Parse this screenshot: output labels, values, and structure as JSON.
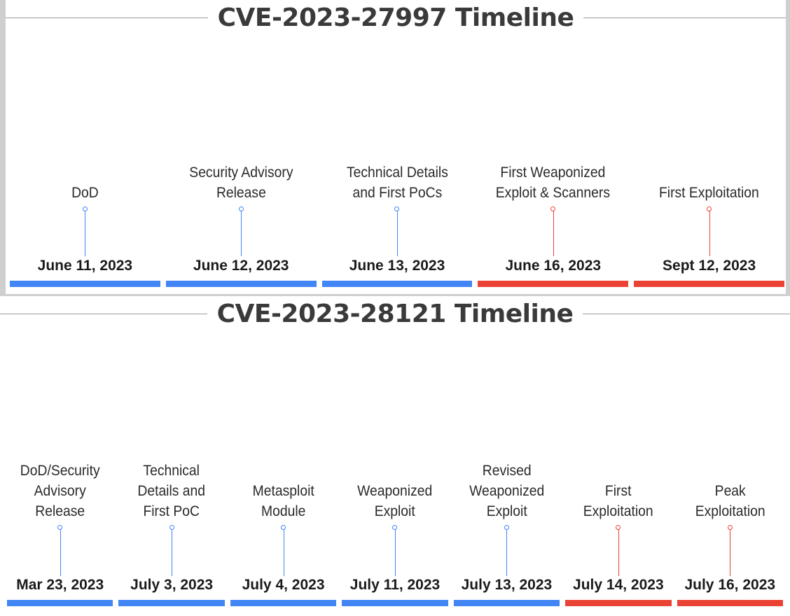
{
  "colors": {
    "blue": "#4285f4",
    "red": "#ea4335"
  },
  "timelines": [
    {
      "title": "CVE-2023-27997 Timeline",
      "events": [
        {
          "label": [
            "DoD"
          ],
          "date": "June 11, 2023",
          "color": "blue"
        },
        {
          "label": [
            "Security Advisory",
            "Release"
          ],
          "date": "June 12, 2023",
          "color": "blue"
        },
        {
          "label": [
            "Technical Details",
            "and First PoCs"
          ],
          "date": "June 13, 2023",
          "color": "blue"
        },
        {
          "label": [
            "First Weaponized",
            "Exploit & Scanners"
          ],
          "date": "June 16, 2023",
          "color": "red"
        },
        {
          "label": [
            "First Exploitation"
          ],
          "date": "Sept 12, 2023",
          "color": "red"
        }
      ]
    },
    {
      "title": "CVE-2023-28121 Timeline",
      "events": [
        {
          "label": [
            "DoD/Security",
            "Advisory",
            "Release"
          ],
          "date": "Mar 23, 2023",
          "color": "blue"
        },
        {
          "label": [
            "Technical",
            "Details and",
            "First PoC"
          ],
          "date": "July 3, 2023",
          "color": "blue"
        },
        {
          "label": [
            "Metasploit",
            "Module"
          ],
          "date": "July 4, 2023",
          "color": "blue"
        },
        {
          "label": [
            "Weaponized",
            "Exploit"
          ],
          "date": "July 11, 2023",
          "color": "blue"
        },
        {
          "label": [
            "Revised",
            "Weaponized",
            "Exploit"
          ],
          "date": "July 13, 2023",
          "color": "blue"
        },
        {
          "label": [
            "First",
            "Exploitation"
          ],
          "date": "July 14, 2023",
          "color": "red"
        },
        {
          "label": [
            "Peak",
            "Exploitation"
          ],
          "date": "July 16, 2023",
          "color": "red"
        }
      ]
    }
  ]
}
